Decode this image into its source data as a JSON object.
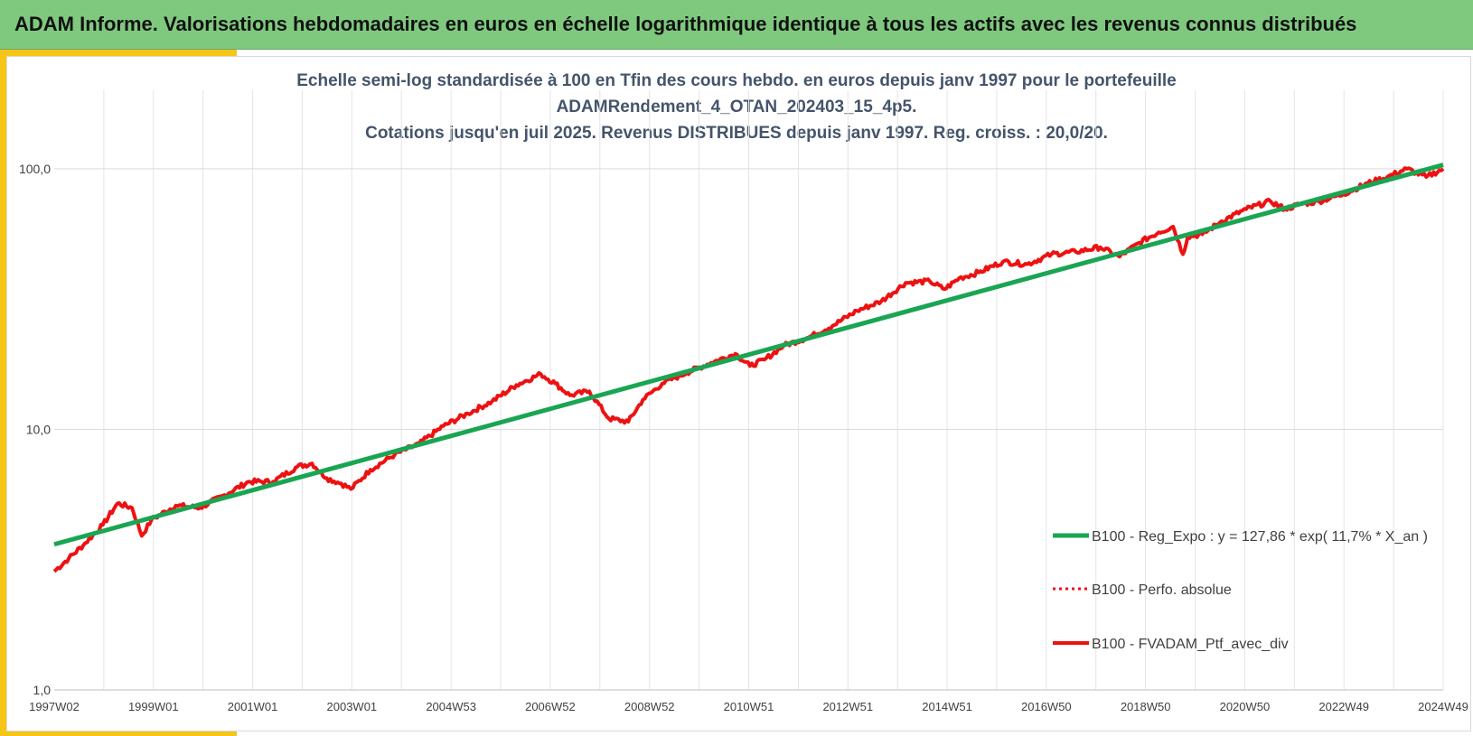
{
  "header": {
    "title": "ADAM Informe. Valorisations hebdomadaires en euros en échelle logarithmique identique à tous les actifs avec les revenus connus distribués"
  },
  "colors": {
    "banner": "#7fc97f",
    "accent": "#f5c518",
    "regression": "#1aa553",
    "portfolio": "#ee1111",
    "title_text": "#44546a"
  },
  "chart_data": {
    "type": "line",
    "title": [
      "Echelle semi-log standardisée à 100 en Tfin des cours hebdo.  en euros depuis janv 1997 pour le portefeuille",
      "ADAMRendement_4_OTAN_202403_15_4p5.",
      "Cotations jusqu'en juil 2025. Revenus DISTRIBUES depuis janv 1997. Reg. croiss. : 20,0/20."
    ],
    "x_tick_labels": [
      "1997W02",
      "1999W01",
      "2001W01",
      "2003W01",
      "2004W53",
      "2006W52",
      "2008W52",
      "2010W51",
      "2012W51",
      "2014W51",
      "2016W50",
      "2018W50",
      "2020W50",
      "2022W49",
      "2024W49"
    ],
    "x_range_years": [
      1997.0,
      2025.55
    ],
    "y_scale": "log",
    "y_tick_values": [
      1,
      10,
      100
    ],
    "y_tick_labels": [
      "1,0",
      "10,0",
      "100,0"
    ],
    "ylim": [
      1,
      200
    ],
    "grid": true,
    "legend_position": "right",
    "series": [
      {
        "name": "B100 - Reg_Expo : y = 127,86 * exp( 11,7% *  X_an )",
        "style": "solid-thick",
        "color": "#1aa553",
        "x": [
          1997.0,
          2025.55
        ],
        "y": [
          3.62,
          103.5
        ]
      },
      {
        "name": "B100 - Perfo. absolue",
        "style": "dotted",
        "color": "#ee1111",
        "x": [],
        "y": []
      },
      {
        "name": "B100 - FVADAM_Ptf_avec_div",
        "style": "solid",
        "color": "#ee1111",
        "x": [
          1997.0,
          1997.3,
          1997.6,
          1998.0,
          1998.3,
          1998.6,
          1998.8,
          1999.0,
          1999.5,
          2000.0,
          2000.5,
          2001.0,
          2001.5,
          2002.0,
          2002.3,
          2002.6,
          2002.9,
          2003.1,
          2003.5,
          2004.0,
          2004.5,
          2005.0,
          2005.5,
          2006.0,
          2006.5,
          2007.0,
          2007.3,
          2007.6,
          2008.0,
          2008.4,
          2008.8,
          2009.1,
          2009.5,
          2010.0,
          2010.5,
          2011.0,
          2011.3,
          2011.6,
          2012.0,
          2012.5,
          2013.0,
          2013.5,
          2014.0,
          2014.5,
          2015.0,
          2015.3,
          2015.6,
          2016.0,
          2016.5,
          2017.0,
          2017.5,
          2018.0,
          2018.5,
          2018.9,
          2019.3,
          2019.7,
          2020.0,
          2020.2,
          2020.3,
          2020.6,
          2021.0,
          2021.5,
          2022.0,
          2022.3,
          2022.6,
          2023.0,
          2023.5,
          2024.0,
          2024.4,
          2024.8,
          2025.2,
          2025.55
        ],
        "y": [
          2.85,
          3.2,
          3.6,
          4.3,
          5.2,
          5.0,
          3.9,
          4.5,
          5.1,
          5.0,
          5.6,
          6.3,
          6.3,
          7.2,
          7.4,
          6.5,
          6.2,
          5.9,
          7.0,
          8.0,
          8.8,
          10.3,
          11.5,
          12.8,
          14.8,
          16.3,
          15.0,
          13.5,
          14.0,
          11.0,
          10.7,
          13.0,
          15.0,
          16.5,
          18.0,
          19.5,
          17.5,
          18.5,
          21.0,
          22.5,
          25.0,
          28.5,
          31.0,
          36.5,
          37.0,
          34.5,
          38.0,
          40.0,
          44.0,
          43.0,
          47.0,
          48.0,
          50.0,
          46.0,
          52.0,
          57.0,
          60.0,
          47.0,
          55.0,
          56.0,
          63.0,
          70.0,
          75.0,
          70.0,
          73.0,
          75.0,
          80.0,
          88.0,
          93.0,
          100.0,
          93.0,
          100.0
        ]
      }
    ]
  }
}
